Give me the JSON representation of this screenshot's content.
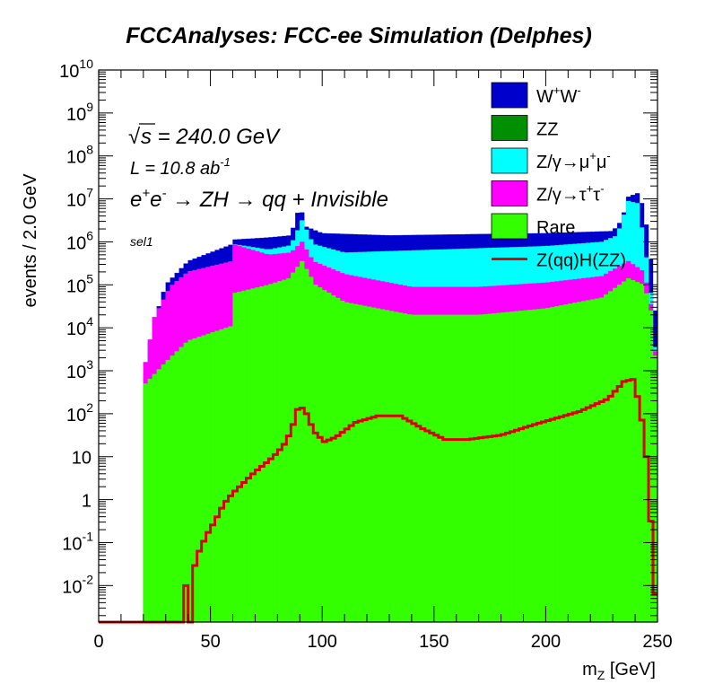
{
  "chart_data": {
    "type": "stacked-histogram",
    "title": "FCCAnalyses: FCC-ee Simulation (Delphes)",
    "xlabel": "m",
    "xlabel_sub": "Z",
    "xlabel_unit": " [GeV]",
    "ylabel": "events / 2.0 GeV",
    "xlim": [
      0,
      250
    ],
    "ylim_log10": [
      -2.85,
      10
    ],
    "log_y": true,
    "bin_width": 2.0,
    "x_ticks": [
      "0",
      "50",
      "100",
      "150",
      "200",
      "250"
    ],
    "x_tick_values": [
      0,
      50,
      100,
      150,
      200,
      250
    ],
    "y_ticks": [
      {
        "exp": -2,
        "base": "10",
        "sup": "-2"
      },
      {
        "exp": -1,
        "base": "10",
        "sup": "-1"
      },
      {
        "exp": 0,
        "base": "1",
        "sup": ""
      },
      {
        "exp": 1,
        "base": "10",
        "sup": ""
      },
      {
        "exp": 2,
        "base": "10",
        "sup": "2"
      },
      {
        "exp": 3,
        "base": "10",
        "sup": "3"
      },
      {
        "exp": 4,
        "base": "10",
        "sup": "4"
      },
      {
        "exp": 5,
        "base": "10",
        "sup": "5"
      },
      {
        "exp": 6,
        "base": "10",
        "sup": "6"
      },
      {
        "exp": 7,
        "base": "10",
        "sup": "7"
      },
      {
        "exp": 8,
        "base": "10",
        "sup": "8"
      },
      {
        "exp": 9,
        "base": "10",
        "sup": "9"
      },
      {
        "exp": 10,
        "base": "10",
        "sup": "10"
      }
    ],
    "annotations": {
      "sqrt_s": "s = 240.0 GeV",
      "lumi": "L = 10.8 ab",
      "lumi_sup": "-1",
      "process": "ZH → qq + Invisible",
      "selection": "sel1"
    },
    "legend_position": "top-right",
    "stack_series": [
      {
        "name": "Rare",
        "color": "#33ff00",
        "knots": [
          [
            20,
            -3
          ],
          [
            21,
            2.7
          ],
          [
            30,
            3.2
          ],
          [
            40,
            3.7
          ],
          [
            60,
            4.05
          ],
          [
            60.01,
            4.8
          ],
          [
            76,
            5.0
          ],
          [
            85,
            5.15
          ],
          [
            91,
            5.55
          ],
          [
            97,
            5.0
          ],
          [
            110,
            4.6
          ],
          [
            140,
            4.3
          ],
          [
            170,
            4.3
          ],
          [
            200,
            4.45
          ],
          [
            225,
            4.7
          ],
          [
            237,
            5.15
          ],
          [
            244,
            5.0
          ],
          [
            248,
            4.2
          ],
          [
            250,
            2.5
          ]
        ]
      },
      {
        "name": "Z/γ→τ⁺τ⁻",
        "color": "#ff00ff",
        "knots": [
          [
            20,
            -3
          ],
          [
            21,
            3.2
          ],
          [
            25,
            4.25
          ],
          [
            32,
            4.95
          ],
          [
            40,
            5.3
          ],
          [
            60,
            5.55
          ],
          [
            60.01,
            5.95
          ],
          [
            76,
            5.7
          ],
          [
            86,
            5.75
          ],
          [
            91,
            6.0
          ],
          [
            96,
            5.55
          ],
          [
            110,
            5.25
          ],
          [
            140,
            4.95
          ],
          [
            170,
            4.95
          ],
          [
            200,
            5.05
          ],
          [
            225,
            5.2
          ],
          [
            237,
            5.55
          ],
          [
            244,
            5.3
          ],
          [
            248,
            4.3
          ],
          [
            250,
            2.6
          ]
        ]
      },
      {
        "name": "Z/γ→μ⁺μ⁻",
        "color": "#00ffff",
        "knots": [
          [
            20,
            -3
          ],
          [
            21,
            3.2
          ],
          [
            25,
            4.25
          ],
          [
            32,
            4.95
          ],
          [
            40,
            5.3
          ],
          [
            60,
            5.55
          ],
          [
            60.01,
            5.95
          ],
          [
            76,
            5.82
          ],
          [
            86,
            5.92
          ],
          [
            91,
            6.5
          ],
          [
            96,
            5.95
          ],
          [
            110,
            5.75
          ],
          [
            170,
            5.85
          ],
          [
            200,
            5.9
          ],
          [
            225,
            6.0
          ],
          [
            232,
            6.15
          ],
          [
            237,
            6.95
          ],
          [
            241,
            6.9
          ],
          [
            244,
            6.05
          ],
          [
            248,
            4.4
          ],
          [
            250,
            2.7
          ]
        ]
      },
      {
        "name": "ZZ",
        "color": "#008f00",
        "knots": [
          [
            20,
            -3
          ],
          [
            21,
            2.5
          ],
          [
            30,
            3.1
          ],
          [
            40,
            3.55
          ],
          [
            60,
            3.75
          ],
          [
            70,
            4.0
          ],
          [
            80,
            4.45
          ],
          [
            86,
            4.9
          ],
          [
            91,
            5.6
          ],
          [
            95,
            5.0
          ],
          [
            100,
            4.25
          ],
          [
            110,
            4.15
          ],
          [
            140,
            4.1
          ],
          [
            170,
            4.1
          ],
          [
            200,
            4.2
          ],
          [
            220,
            4.55
          ],
          [
            232,
            4.95
          ],
          [
            237,
            5.4
          ],
          [
            241,
            5.4
          ],
          [
            245,
            4.9
          ],
          [
            248,
            4.0
          ],
          [
            250,
            2.3
          ]
        ]
      },
      {
        "name": "W⁺W⁻",
        "color": "#0000cc",
        "knots": [
          [
            20,
            -3
          ],
          [
            21,
            2.9
          ],
          [
            24,
            4.0
          ],
          [
            30,
            5.0
          ],
          [
            40,
            5.55
          ],
          [
            60,
            5.95
          ],
          [
            60.01,
            6.05
          ],
          [
            76,
            6.1
          ],
          [
            86,
            6.15
          ],
          [
            90,
            6.85
          ],
          [
            93,
            6.35
          ],
          [
            100,
            6.2
          ],
          [
            130,
            6.15
          ],
          [
            170,
            6.18
          ],
          [
            200,
            6.2
          ],
          [
            230,
            6.25
          ],
          [
            234,
            6.5
          ],
          [
            237,
            7.05
          ],
          [
            242,
            7.15
          ],
          [
            245,
            6.4
          ],
          [
            248,
            5.2
          ],
          [
            250,
            3.6
          ]
        ]
      }
    ],
    "legend": [
      {
        "label": "W",
        "sup": "+",
        "label2": "W",
        "sup2": "-",
        "color": "#0000cc"
      },
      {
        "label": "ZZ",
        "color": "#008f00"
      },
      {
        "label": "Z/γ→μ",
        "sup": "+",
        "label2": "μ",
        "sup2": "-",
        "color": "#00ffff"
      },
      {
        "label": "Z/γ→τ",
        "sup": "+",
        "label2": "τ",
        "sup2": "-",
        "color": "#ff00ff"
      },
      {
        "label": "Rare",
        "color": "#33ff00"
      },
      {
        "label": "Z(qq)H(ZZ)",
        "color": "#dd0000",
        "line": true
      }
    ],
    "signal": {
      "name": "Z(qq)H(ZZ)",
      "color": "#dd0000",
      "knots": [
        [
          0,
          -2.85
        ],
        [
          38,
          -2.85
        ],
        [
          38.01,
          -2
        ],
        [
          39,
          -2
        ],
        [
          40,
          -2.85
        ],
        [
          41,
          -2.85
        ],
        [
          42,
          -1.7
        ],
        [
          45,
          -1.2
        ],
        [
          48,
          -0.85
        ],
        [
          52,
          -0.5
        ],
        [
          56,
          -0.1
        ],
        [
          60,
          0.15
        ],
        [
          66,
          0.45
        ],
        [
          70,
          0.65
        ],
        [
          76,
          0.9
        ],
        [
          80,
          1.1
        ],
        [
          84,
          1.35
        ],
        [
          87,
          1.75
        ],
        [
          89,
          2.1
        ],
        [
          92,
          2.15
        ],
        [
          94,
          1.85
        ],
        [
          97,
          1.55
        ],
        [
          101,
          1.35
        ],
        [
          106,
          1.45
        ],
        [
          115,
          1.8
        ],
        [
          125,
          1.95
        ],
        [
          135,
          1.95
        ],
        [
          145,
          1.65
        ],
        [
          155,
          1.4
        ],
        [
          165,
          1.4
        ],
        [
          180,
          1.5
        ],
        [
          195,
          1.75
        ],
        [
          205,
          1.9
        ],
        [
          215,
          2.05
        ],
        [
          228,
          2.35
        ],
        [
          235,
          2.75
        ],
        [
          239,
          2.8
        ],
        [
          242,
          2.2
        ],
        [
          244,
          1.5
        ],
        [
          246,
          0.5
        ],
        [
          247.5,
          -1
        ],
        [
          249,
          -2.2
        ],
        [
          250,
          -2.6
        ]
      ]
    }
  }
}
